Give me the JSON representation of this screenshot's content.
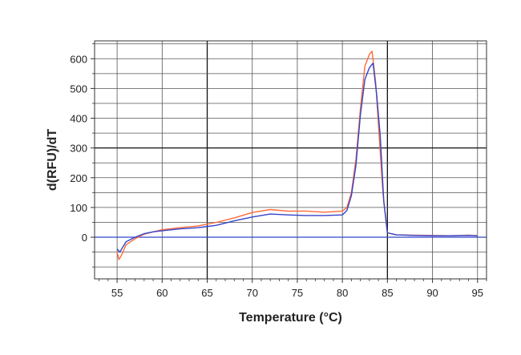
{
  "chart_data": {
    "type": "line",
    "title": "",
    "xlabel": "Temperature (°C)",
    "ylabel": "d(RFU)/dT",
    "xlim": [
      52.5,
      96
    ],
    "ylim": [
      -140,
      660
    ],
    "x_ticks": [
      55,
      60,
      65,
      70,
      75,
      80,
      85,
      90,
      95
    ],
    "y_ticks": [
      0,
      100,
      200,
      300,
      400,
      500,
      600
    ],
    "x_tick_labels": [
      "55",
      "60",
      "65",
      "70",
      "75",
      "80",
      "85",
      "90",
      "95"
    ],
    "y_tick_labels": [
      "0",
      "100",
      "200",
      "300",
      "400",
      "500",
      "600"
    ],
    "grid": true,
    "emphasized_gridlines": {
      "x": [
        65,
        85
      ],
      "y": [
        300
      ]
    },
    "zero_line_color": "#3344cc",
    "series": [
      {
        "color": "#ff6a3a",
        "x": [
          55,
          55.2,
          55.5,
          56,
          57,
          58,
          59,
          60,
          62,
          64,
          66,
          68,
          70,
          72,
          74,
          76,
          78,
          80,
          80.5,
          81,
          81.5,
          82,
          82.5,
          83,
          83.3,
          83.7,
          84,
          84.5,
          85,
          86,
          88,
          90,
          92,
          94,
          95
        ],
        "values": [
          -50,
          -75,
          -60,
          -25,
          -5,
          10,
          18,
          25,
          32,
          38,
          50,
          65,
          83,
          93,
          88,
          88,
          84,
          88,
          100,
          150,
          260,
          430,
          575,
          615,
          625,
          520,
          380,
          150,
          15,
          8,
          7,
          6,
          5,
          7,
          5
        ]
      },
      {
        "color": "#3344cc",
        "x": [
          55,
          55.3,
          55.6,
          56,
          57,
          58,
          59,
          60,
          62,
          64,
          66,
          68,
          70,
          72,
          74,
          76,
          78,
          80,
          80.5,
          81,
          81.5,
          82,
          82.5,
          83,
          83.4,
          83.8,
          84.2,
          84.6,
          85,
          86,
          88,
          90,
          92,
          94,
          95
        ],
        "values": [
          -40,
          -50,
          -35,
          -15,
          0,
          12,
          18,
          22,
          28,
          32,
          40,
          55,
          68,
          78,
          75,
          73,
          73,
          75,
          90,
          140,
          240,
          410,
          530,
          570,
          585,
          480,
          340,
          120,
          15,
          8,
          6,
          5,
          5,
          6,
          5
        ]
      }
    ]
  }
}
